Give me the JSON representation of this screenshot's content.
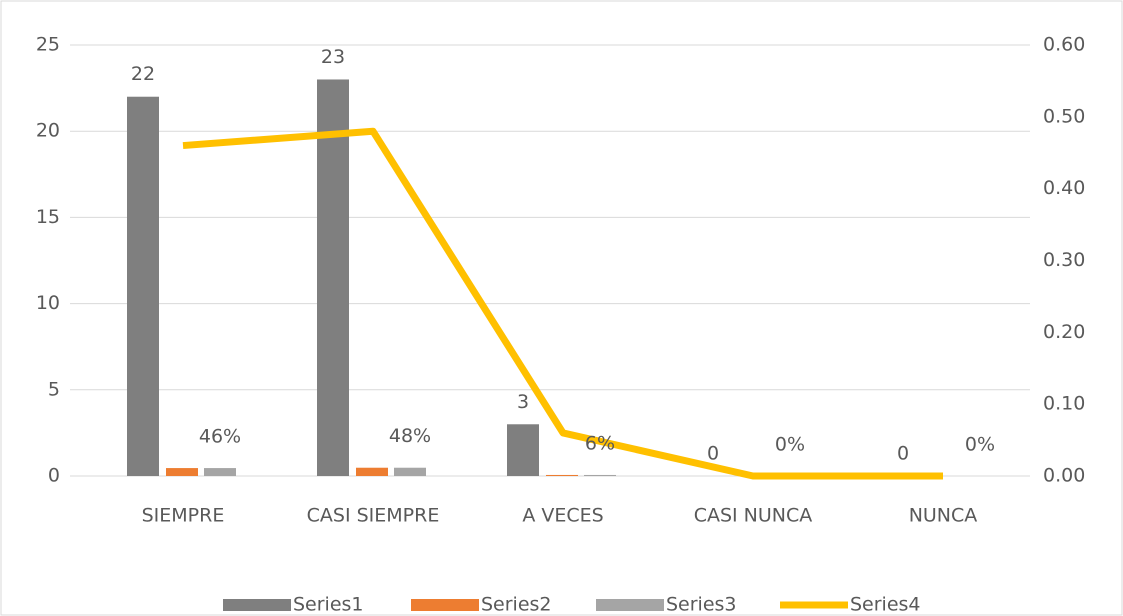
{
  "chart_data": {
    "type": "combo",
    "categories": [
      "SIEMPRE",
      "CASI SIEMPRE",
      "A VECES",
      "CASI NUNCA",
      "NUNCA"
    ],
    "series": [
      {
        "name": "Series1",
        "type": "bar",
        "color": "#7f7f7f",
        "values": [
          22,
          23,
          3,
          0,
          0
        ]
      },
      {
        "name": "Series2",
        "type": "bar",
        "color": "#ed7d31",
        "values": [
          0.46,
          0.48,
          0.06,
          0,
          0
        ]
      },
      {
        "name": "Series3",
        "type": "bar",
        "color": "#a5a5a5",
        "values": [
          0.46,
          0.48,
          0.06,
          0,
          0
        ],
        "value_labels": [
          "46%",
          "48%",
          "6%",
          "0%",
          "0%"
        ]
      },
      {
        "name": "Series4",
        "type": "line",
        "axis": "y2",
        "color": "#ffc000",
        "values": [
          0.46,
          0.48,
          0.06,
          0,
          0
        ]
      }
    ],
    "ylim": [
      0,
      25
    ],
    "yticks": [
      0,
      5,
      10,
      15,
      20,
      25
    ],
    "y2lim": [
      0,
      0.6
    ],
    "y2ticks": [
      {
        "value": 0,
        "label": "0.00"
      },
      {
        "value": 0.1,
        "label": "0.10"
      },
      {
        "value": 0.2,
        "label": "0.20"
      },
      {
        "value": 0.3,
        "label": "0.30"
      },
      {
        "value": 0.4,
        "label": "0.40"
      },
      {
        "value": 0.5,
        "label": "0.50"
      },
      {
        "value": 0.6,
        "label": "0.60"
      }
    ],
    "grid": true,
    "legend": "bottom"
  }
}
